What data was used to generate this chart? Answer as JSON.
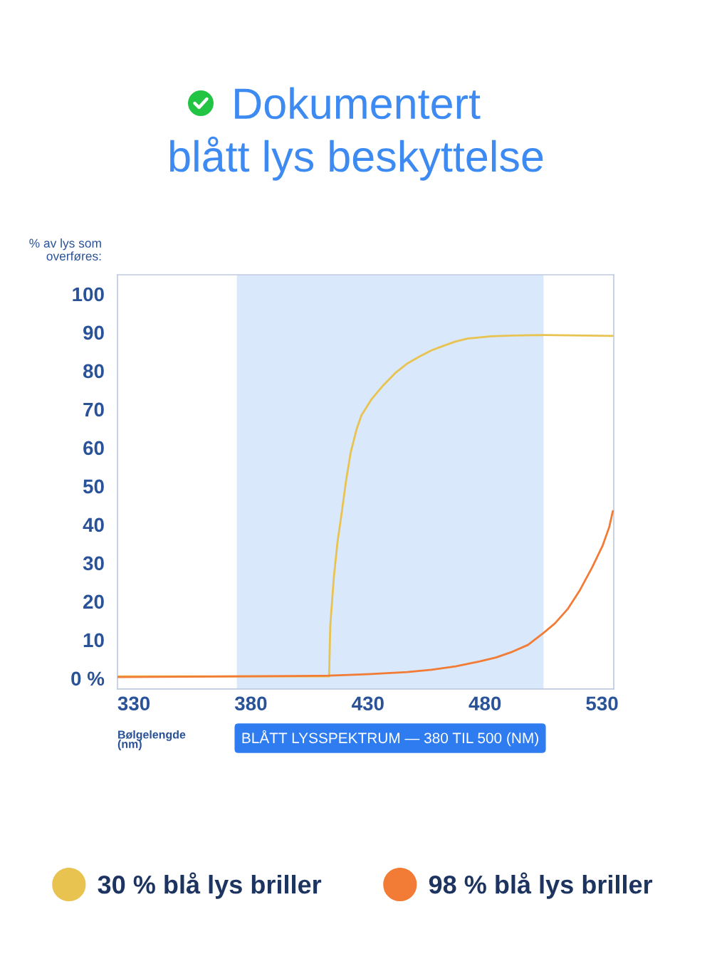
{
  "chart_data": {
    "type": "line",
    "title": "Dokumentert\nblått lys beskyttelse",
    "xlabel": "Bølgelengde\n(nm)",
    "ylabel": "% av lys som\noverføres:",
    "xlim": [
      323,
      535
    ],
    "xticks": [
      330,
      380,
      430,
      480,
      530
    ],
    "ylim": [
      -2.8,
      105
    ],
    "yticks": [
      {
        "value": 0,
        "label": "0 %"
      },
      10,
      20,
      30,
      40,
      50,
      60,
      70,
      80,
      90,
      100
    ],
    "bands": [
      {
        "axis": "x",
        "from": 374,
        "to": 505,
        "label": "BLÅTT LYSSPEKTRUM — 380 TIL 500 (NM)",
        "color": "#d9e8fb"
      }
    ],
    "legend": "bottom",
    "grid": false,
    "line_style": "solid",
    "marker": "none",
    "series": [
      {
        "name": "30 % blå lys briller",
        "color": "#e9c350",
        "x": [
          323,
          413.4,
          413.9,
          415.4,
          417.0,
          418.5,
          420.6,
          422.6,
          425.2,
          427.2,
          431.4,
          436.5,
          441.6,
          446.8,
          451.9,
          457.1,
          462.2,
          467.3,
          472.5,
          482.7,
          491.7,
          504.8,
          534.6
        ],
        "values": [
          0.5,
          0.5,
          13.6,
          26.1,
          35.5,
          41.8,
          51.2,
          58.7,
          64.9,
          68.4,
          72.5,
          76.2,
          79.4,
          81.9,
          83.7,
          85.3,
          86.5,
          87.6,
          88.4,
          89.0,
          89.2,
          89.3,
          89.1
        ]
      },
      {
        "name": "98 % blå lys briller",
        "color": "#f27b35",
        "x": [
          323,
          400.5,
          413.3,
          431.2,
          446.7,
          457.1,
          467.4,
          477.7,
          484.7,
          491.7,
          498.4,
          504.8,
          509.9,
          515.3,
          520.6,
          525.8,
          530.3,
          533.1,
          534.6
        ],
        "values": [
          0.3,
          0.6,
          0.7,
          1.1,
          1.6,
          2.2,
          3.1,
          4.4,
          5.4,
          6.9,
          8.7,
          11.7,
          14.3,
          18.0,
          23.0,
          28.9,
          34.6,
          39.4,
          43.5
        ]
      }
    ]
  }
}
